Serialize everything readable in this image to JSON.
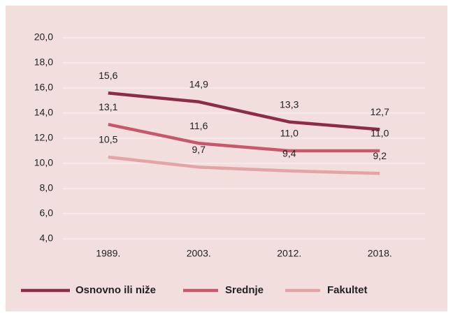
{
  "chart_data": {
    "type": "line",
    "categories": [
      "1989.",
      "2003.",
      "2012.",
      "2018."
    ],
    "series": [
      {
        "name": "Osnovno ili niže",
        "color": "#8c2c47",
        "values": [
          15.6,
          14.9,
          13.3,
          12.7
        ],
        "value_labels": [
          "15,6",
          "14,9",
          "13,3",
          "12,7"
        ]
      },
      {
        "name": "Srednje",
        "color": "#c9576c",
        "values": [
          13.1,
          11.6,
          11.0,
          11.0
        ],
        "value_labels": [
          "13,1",
          "11,6",
          "11,0",
          "11,0"
        ]
      },
      {
        "name": "Fakultet",
        "color": "#e3a4a7",
        "values": [
          10.5,
          9.7,
          9.4,
          9.2
        ],
        "value_labels": [
          "10,5",
          "9,7",
          "9,4",
          "9,2"
        ]
      }
    ],
    "ylim": [
      4,
      20
    ],
    "yticks": [
      {
        "value": 4,
        "label": "4,0"
      },
      {
        "value": 6,
        "label": "6,0"
      },
      {
        "value": 8,
        "label": "8,0"
      },
      {
        "value": 10,
        "label": "10,0"
      },
      {
        "value": 12,
        "label": "12,0"
      },
      {
        "value": 14,
        "label": "14,0"
      },
      {
        "value": 16,
        "label": "16,0"
      },
      {
        "value": 18,
        "label": "18,0"
      },
      {
        "value": 20,
        "label": "20,0"
      }
    ],
    "grid": true,
    "legend": "bottom"
  }
}
